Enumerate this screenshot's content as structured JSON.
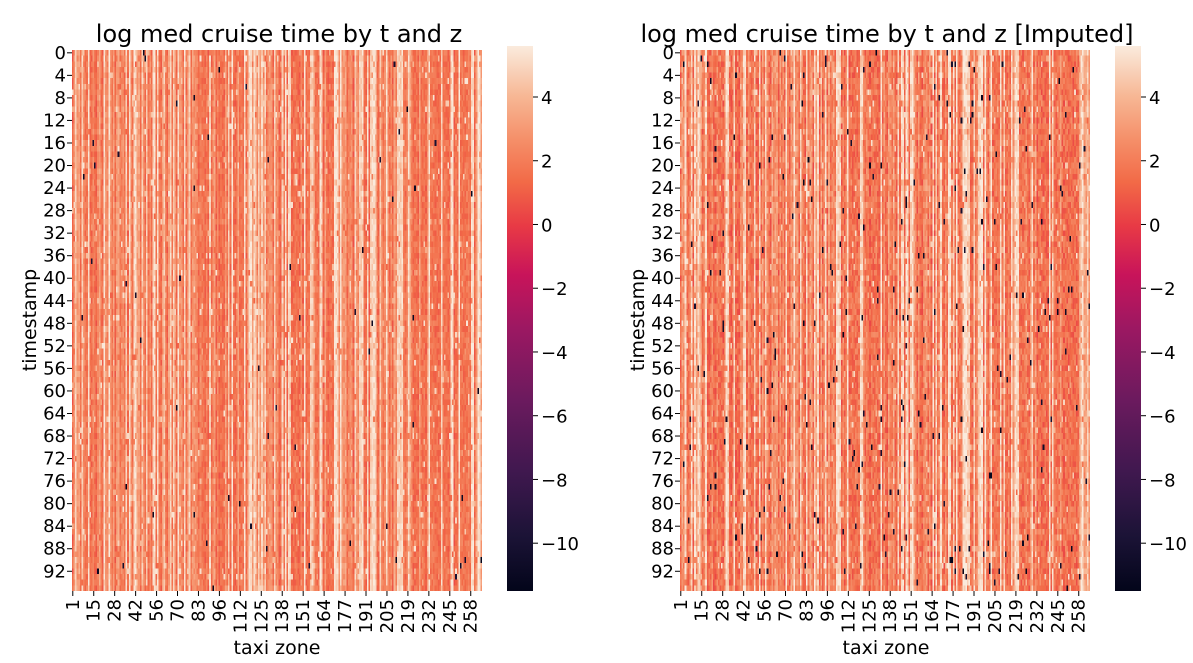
{
  "chart_data": [
    {
      "type": "heatmap",
      "title": "log med cruise time by t and z",
      "xlabel": "taxi zone",
      "ylabel": "timestamp",
      "x_tick_labels": [
        "1",
        "15",
        "28",
        "42",
        "56",
        "70",
        "83",
        "96",
        "112",
        "125",
        "138",
        "151",
        "164",
        "177",
        "191",
        "205",
        "219",
        "232",
        "245",
        "258"
      ],
      "y_tick_labels": [
        "0",
        "4",
        "8",
        "12",
        "16",
        "20",
        "24",
        "28",
        "32",
        "36",
        "40",
        "44",
        "48",
        "52",
        "56",
        "60",
        "64",
        "68",
        "72",
        "76",
        "80",
        "84",
        "88",
        "92"
      ],
      "n_rows": 96,
      "n_cols": 260,
      "colorbar": {
        "vmin": -11.5,
        "vmax": 5.6,
        "ticks": [
          "4",
          "2",
          "0",
          "−2",
          "−4",
          "−6",
          "−8",
          "−10"
        ]
      },
      "cell_value_distribution": {
        "typical_low": 0.6,
        "typical_high": 5.5,
        "black_outliers": "rare, about -11"
      }
    },
    {
      "type": "heatmap",
      "title": "log med cruise time by t and z [Imputed]",
      "xlabel": "taxi zone",
      "ylabel": "timestamp",
      "x_tick_labels": [
        "1",
        "15",
        "28",
        "42",
        "56",
        "70",
        "83",
        "96",
        "112",
        "125",
        "138",
        "151",
        "164",
        "177",
        "191",
        "205",
        "219",
        "232",
        "245",
        "258"
      ],
      "y_tick_labels": [
        "0",
        "4",
        "8",
        "12",
        "16",
        "20",
        "24",
        "28",
        "32",
        "36",
        "40",
        "44",
        "48",
        "52",
        "56",
        "60",
        "64",
        "68",
        "72",
        "76",
        "80",
        "84",
        "88",
        "92"
      ],
      "n_rows": 96,
      "n_cols": 260,
      "colorbar": {
        "vmin": -11.5,
        "vmax": 5.6,
        "ticks": [
          "4",
          "2",
          "0",
          "−2",
          "−4",
          "−6",
          "−8",
          "−10"
        ]
      },
      "cell_value_distribution": {
        "typical_low": 0.6,
        "typical_high": 5.5,
        "black_outliers": "more frequent, about -11"
      }
    }
  ]
}
